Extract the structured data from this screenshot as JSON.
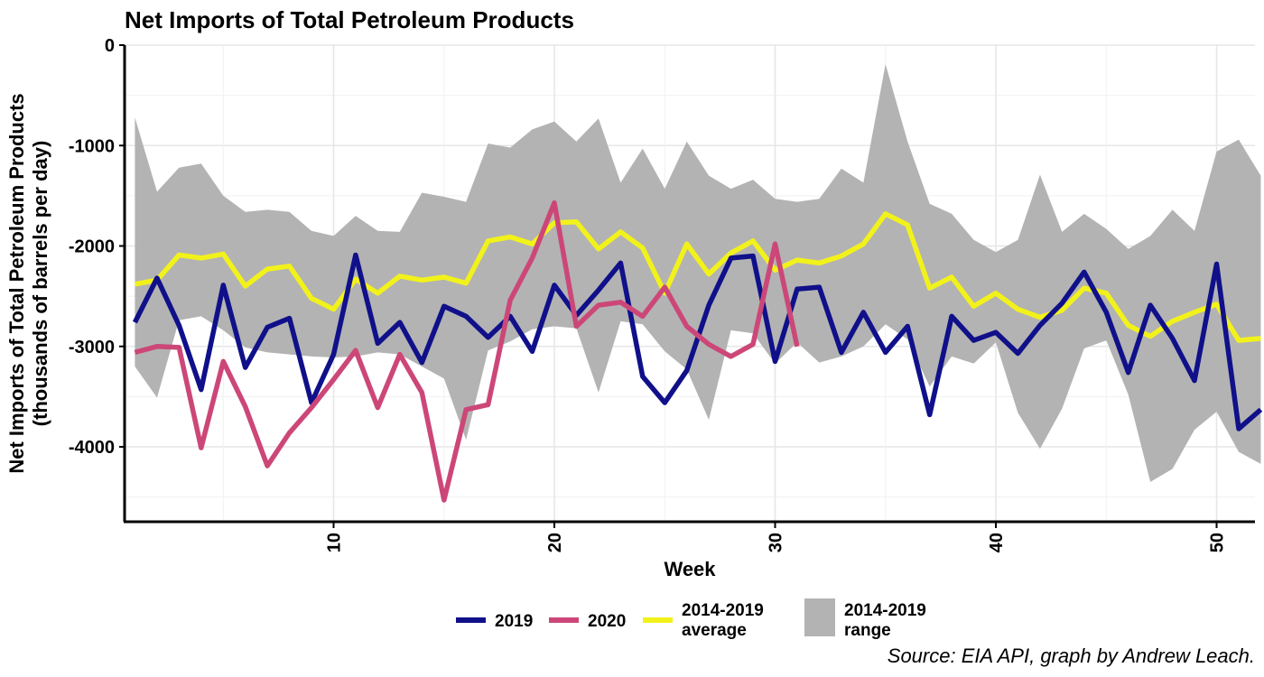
{
  "chart_data": {
    "type": "line",
    "title": "Net Imports of Total Petroleum Products",
    "xlabel": "Week",
    "ylabel_line1": "Net Imports of Total Petroleum Products",
    "ylabel_line2": "(thousands of barrels per day)",
    "caption": "Source: EIA API, graph by Andrew Leach.",
    "xlim": [
      1,
      52
    ],
    "ylim": [
      -4750,
      0
    ],
    "x_ticks": [
      10,
      20,
      30,
      40,
      50
    ],
    "y_ticks": [
      0,
      -1000,
      -2000,
      -3000,
      -4000
    ],
    "y_tick_labels": [
      "0",
      "-1000",
      "-2000",
      "-3000",
      "-4000"
    ],
    "grid": true,
    "legend_position": "bottom",
    "range_band": {
      "name": "2014-2019 range",
      "label_line1": "2014-2019",
      "label_line2": "range",
      "color": "#b3b3b3",
      "x": [
        1,
        2,
        3,
        4,
        5,
        6,
        7,
        8,
        9,
        10,
        11,
        12,
        13,
        14,
        15,
        16,
        17,
        18,
        19,
        20,
        21,
        22,
        23,
        24,
        25,
        26,
        27,
        28,
        29,
        30,
        31,
        32,
        33,
        34,
        35,
        36,
        37,
        38,
        39,
        40,
        41,
        42,
        43,
        44,
        45,
        46,
        47,
        48,
        49,
        50,
        51,
        52
      ],
      "upper": [
        -720,
        -1460,
        -1220,
        -1180,
        -1500,
        -1660,
        -1640,
        -1660,
        -1850,
        -1900,
        -1700,
        -1850,
        -1860,
        -1470,
        -1510,
        -1560,
        -980,
        -1020,
        -840,
        -760,
        -960,
        -730,
        -1370,
        -1030,
        -1430,
        -960,
        -1300,
        -1430,
        -1340,
        -1530,
        -1560,
        -1530,
        -1230,
        -1370,
        -190,
        -960,
        -1580,
        -1680,
        -1940,
        -2060,
        -1940,
        -1290,
        -1860,
        -1680,
        -1830,
        -2030,
        -1900,
        -1640,
        -1850,
        -1060,
        -940,
        -1300
      ],
      "lower": [
        -3200,
        -3510,
        -2740,
        -2700,
        -2840,
        -3010,
        -3060,
        -3080,
        -3100,
        -3110,
        -3100,
        -3060,
        -3080,
        -3200,
        -3320,
        -3930,
        -3040,
        -2950,
        -2830,
        -2800,
        -2820,
        -3460,
        -2750,
        -2780,
        -3050,
        -3230,
        -3730,
        -2840,
        -2870,
        -3170,
        -2960,
        -3160,
        -3100,
        -3000,
        -2780,
        -2930,
        -3400,
        -3100,
        -3170,
        -2960,
        -3660,
        -4020,
        -3620,
        -3020,
        -2940,
        -3480,
        -4350,
        -4220,
        -3830,
        -3650,
        -4050,
        -4170
      ]
    },
    "series": [
      {
        "name": "2014-2019 average",
        "label_line1": "2014-2019",
        "label_line2": "average",
        "color": "#f2f21b",
        "x": [
          1,
          2,
          3,
          4,
          5,
          6,
          7,
          8,
          9,
          10,
          11,
          12,
          13,
          14,
          15,
          16,
          17,
          18,
          19,
          20,
          21,
          22,
          23,
          24,
          25,
          26,
          27,
          28,
          29,
          30,
          31,
          32,
          33,
          34,
          35,
          36,
          37,
          38,
          39,
          40,
          41,
          42,
          43,
          44,
          45,
          46,
          47,
          48,
          49,
          50,
          51,
          52
        ],
        "values": [
          -2380,
          -2340,
          -2090,
          -2120,
          -2080,
          -2400,
          -2230,
          -2200,
          -2520,
          -2630,
          -2330,
          -2470,
          -2300,
          -2340,
          -2310,
          -2370,
          -1950,
          -1910,
          -1980,
          -1770,
          -1760,
          -2030,
          -1860,
          -2020,
          -2470,
          -1980,
          -2280,
          -2070,
          -1950,
          -2240,
          -2140,
          -2170,
          -2100,
          -1980,
          -1680,
          -1790,
          -2420,
          -2310,
          -2600,
          -2470,
          -2630,
          -2710,
          -2640,
          -2420,
          -2470,
          -2790,
          -2900,
          -2750,
          -2660,
          -2580,
          -2940,
          -2920
        ]
      },
      {
        "name": "2019",
        "label_line1": "2019",
        "color": "#10108a",
        "x": [
          1,
          2,
          3,
          4,
          5,
          6,
          7,
          8,
          9,
          10,
          11,
          12,
          13,
          14,
          15,
          16,
          17,
          18,
          19,
          20,
          21,
          22,
          23,
          24,
          25,
          26,
          27,
          28,
          29,
          30,
          31,
          32,
          33,
          34,
          35,
          36,
          37,
          38,
          39,
          40,
          41,
          42,
          43,
          44,
          45,
          46,
          47,
          48,
          49,
          50,
          51,
          52
        ],
        "values": [
          -2760,
          -2320,
          -2790,
          -3430,
          -2390,
          -3210,
          -2810,
          -2720,
          -3560,
          -3080,
          -2090,
          -2970,
          -2760,
          -3160,
          -2600,
          -2700,
          -2910,
          -2700,
          -3050,
          -2390,
          -2690,
          -2440,
          -2170,
          -3300,
          -3560,
          -3240,
          -2590,
          -2120,
          -2100,
          -3150,
          -2430,
          -2410,
          -3060,
          -2660,
          -3060,
          -2800,
          -3680,
          -2700,
          -2940,
          -2860,
          -3070,
          -2790,
          -2570,
          -2260,
          -2660,
          -3260,
          -2590,
          -2920,
          -3340,
          -2180,
          -3820,
          -3630
        ]
      },
      {
        "name": "2020",
        "label_line1": "2020",
        "color": "#cc4778",
        "x": [
          1,
          2,
          3,
          4,
          5,
          6,
          7,
          8,
          9,
          10,
          11,
          12,
          13,
          14,
          15,
          16,
          17,
          18,
          19,
          20,
          21,
          22,
          23,
          24,
          25,
          26,
          27,
          28,
          29,
          30,
          31
        ],
        "values": [
          -3060,
          -3000,
          -3010,
          -4010,
          -3150,
          -3600,
          -4190,
          -3860,
          -3610,
          -3330,
          -3040,
          -3610,
          -3080,
          -3460,
          -4530,
          -3630,
          -3580,
          -2540,
          -2120,
          -1570,
          -2800,
          -2590,
          -2560,
          -2700,
          -2410,
          -2800,
          -2980,
          -3100,
          -2980,
          -1980,
          -3000
        ]
      }
    ]
  }
}
